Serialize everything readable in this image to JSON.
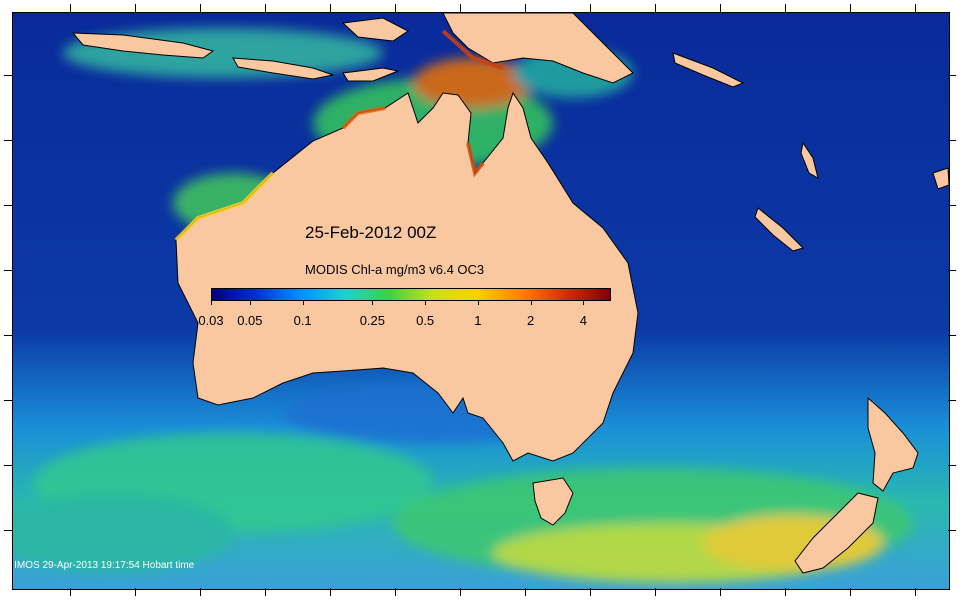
{
  "map": {
    "date_label": "25-Feb-2012 00Z",
    "scale_title": "MODIS Chl-a mg/m3 v6.4 OC3",
    "colorbar_ticks": [
      "0.03",
      "0.05",
      "0.1",
      "0.25",
      "0.5",
      "1",
      "2",
      "4"
    ],
    "colorbar_stops": [
      "#00007f",
      "#0030d0",
      "#0090ff",
      "#20d0d0",
      "#40d040",
      "#c8e020",
      "#ffd000",
      "#ff8000",
      "#d03000",
      "#7f0000"
    ],
    "land_color": "#f9c8a0",
    "credit": "© IMOS 29-Apr-2013 19:17:54 Hobart time"
  }
}
